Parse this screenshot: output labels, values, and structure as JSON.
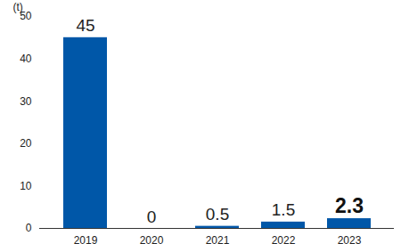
{
  "chart_data": {
    "type": "bar",
    "ylabel": "(t)",
    "categories": [
      "2019",
      "2020",
      "2021",
      "2022",
      "2023"
    ],
    "values": [
      45,
      0,
      0.5,
      1.5,
      2.3
    ],
    "color": "#0057a8",
    "ylim": [
      0,
      50
    ],
    "yticks": [
      0,
      10,
      20,
      30,
      40,
      50
    ],
    "grid": false,
    "data_labels": true
  }
}
